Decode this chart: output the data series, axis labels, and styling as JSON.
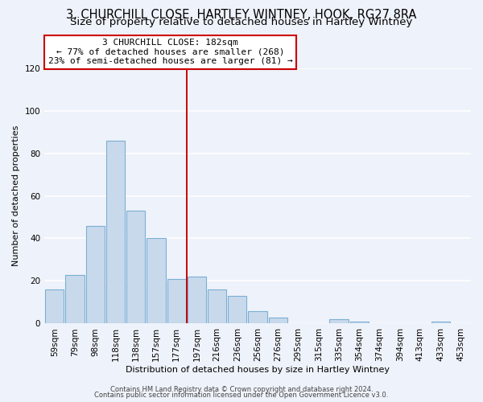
{
  "title": "3, CHURCHILL CLOSE, HARTLEY WINTNEY, HOOK, RG27 8RA",
  "subtitle": "Size of property relative to detached houses in Hartley Wintney",
  "xlabel": "Distribution of detached houses by size in Hartley Wintney",
  "ylabel": "Number of detached properties",
  "bar_labels": [
    "59sqm",
    "79sqm",
    "98sqm",
    "118sqm",
    "138sqm",
    "157sqm",
    "177sqm",
    "197sqm",
    "216sqm",
    "236sqm",
    "256sqm",
    "276sqm",
    "295sqm",
    "315sqm",
    "335sqm",
    "354sqm",
    "374sqm",
    "394sqm",
    "413sqm",
    "433sqm",
    "453sqm"
  ],
  "bar_values": [
    16,
    23,
    46,
    86,
    53,
    40,
    21,
    22,
    16,
    13,
    6,
    3,
    0,
    0,
    2,
    1,
    0,
    0,
    0,
    1,
    0
  ],
  "bar_color": "#c9d9ec",
  "bar_edge_color": "#7bafd4",
  "vline_x_index": 6,
  "vline_color": "#cc0000",
  "annotation_title": "3 CHURCHILL CLOSE: 182sqm",
  "annotation_line1": "← 77% of detached houses are smaller (268)",
  "annotation_line2": "23% of semi-detached houses are larger (81) →",
  "annotation_box_color": "#ffffff",
  "annotation_box_edge": "#cc0000",
  "ylim": [
    0,
    120
  ],
  "yticks": [
    0,
    20,
    40,
    60,
    80,
    100,
    120
  ],
  "footer1": "Contains HM Land Registry data © Crown copyright and database right 2024.",
  "footer2": "Contains public sector information licensed under the Open Government Licence v3.0.",
  "bg_color": "#eef2fa",
  "title_fontsize": 10.5,
  "subtitle_fontsize": 9.5,
  "axis_fontsize": 8,
  "tick_fontsize": 7.5,
  "annot_fontsize": 8,
  "footer_fontsize": 6
}
